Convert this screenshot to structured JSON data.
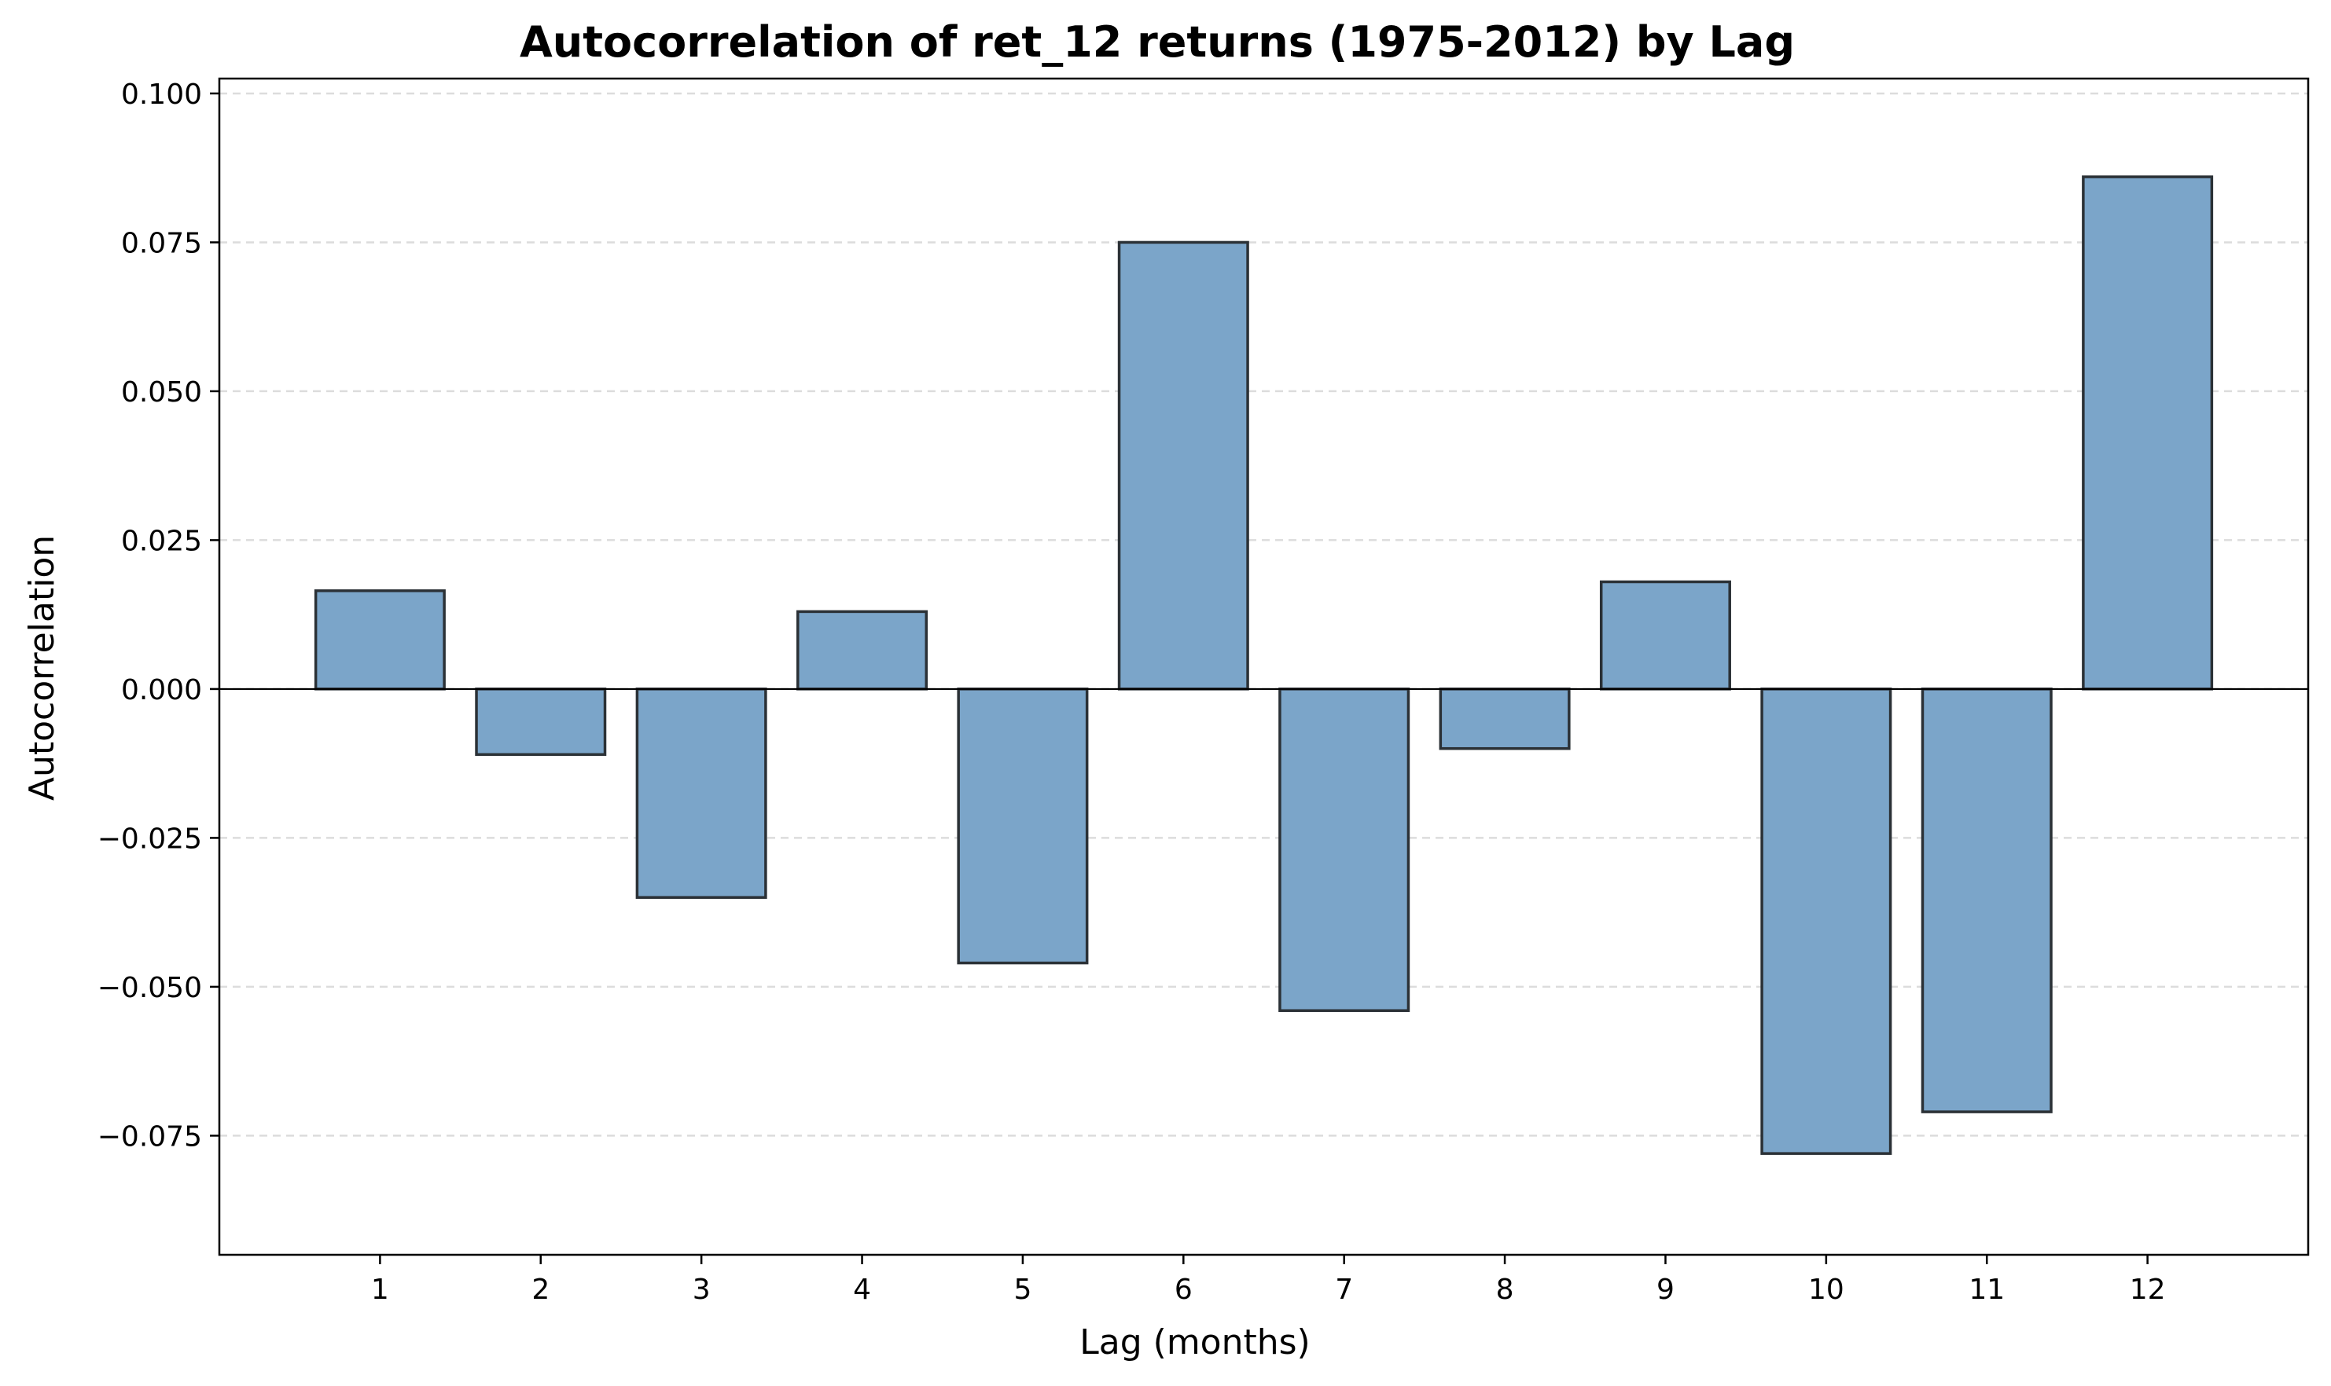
{
  "chart_data": {
    "type": "bar",
    "title": "Autocorrelation of ret_12 returns (1975-2012) by Lag",
    "xlabel": "Lag (months)",
    "ylabel": "Autocorrelation",
    "categories": [
      "1",
      "2",
      "3",
      "4",
      "5",
      "6",
      "7",
      "8",
      "9",
      "10",
      "11",
      "12"
    ],
    "values": [
      0.0165,
      -0.011,
      -0.035,
      0.013,
      -0.046,
      0.075,
      -0.054,
      -0.01,
      0.018,
      -0.078,
      -0.071,
      0.086
    ],
    "ylim": [
      -0.095,
      0.1025
    ],
    "yticks": [
      0.1,
      0.075,
      0.05,
      0.025,
      0.0,
      -0.025,
      -0.05,
      -0.075
    ],
    "ytick_labels": [
      "0.100",
      "0.075",
      "0.050",
      "0.025",
      "0.000",
      "−0.025",
      "−0.050",
      "−0.075"
    ],
    "grid": "y-dashed",
    "zero_line": true,
    "colors": {
      "bar_fill": "#7ba5c9",
      "bar_edge": "#2b3136",
      "grid": "#dcdcdc",
      "axis": "#000000"
    }
  }
}
